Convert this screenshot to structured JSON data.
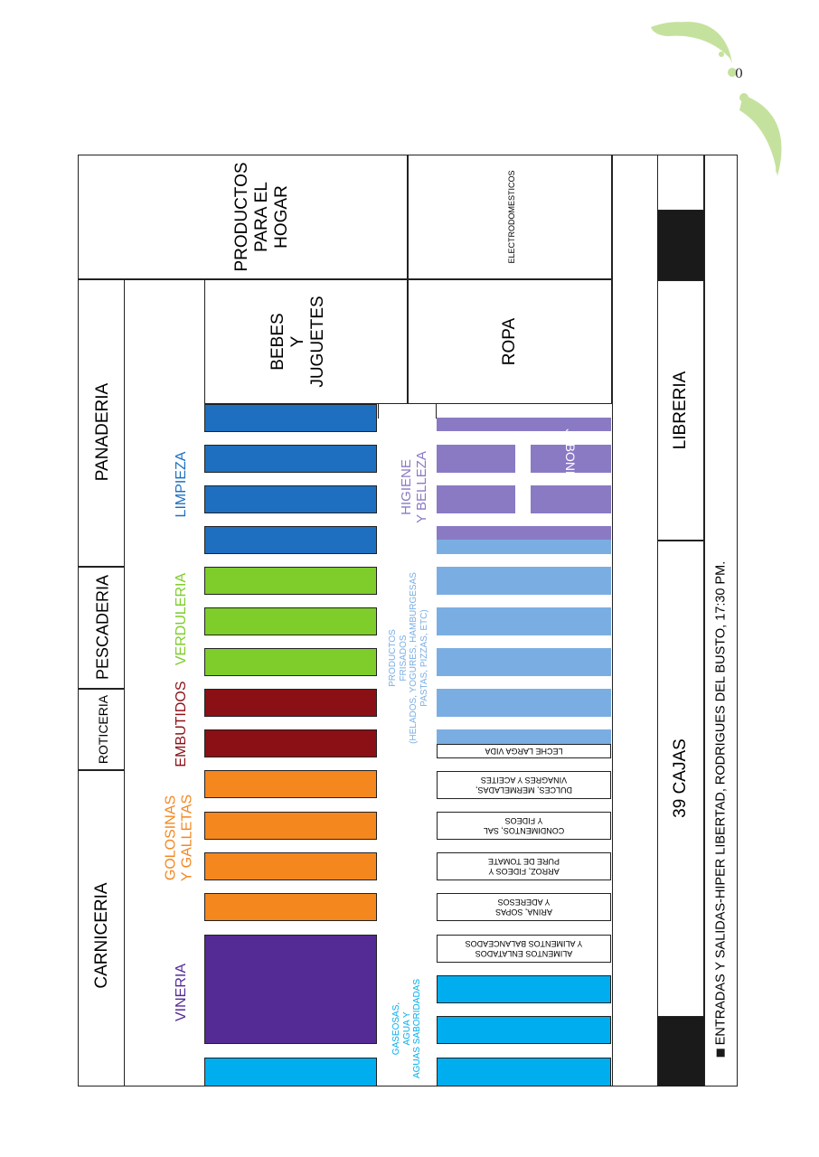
{
  "page_number": "0",
  "sections": {
    "carniceria": "CARNICERIA",
    "roticeria": "ROTICERIA",
    "pescaderia": "PESCADERIA",
    "panaderia": "PANADERIA",
    "productos_hogar": "PRODUCTOS\nPARA EL\nHOGAR",
    "electrodomesticos": "ELECTRODOMESTICOS",
    "bebes_juguetes": "BEBES\nY\nJUGUETES",
    "ropa": "ROPA",
    "libreria": "LIBRERIA",
    "cajas": "39 CAJAS"
  },
  "categories": {
    "vineria": "VINERIA",
    "golosinas": "GOLOSINAS\nY GALLETAS",
    "embutidos": "EMBUTIDOS",
    "verduleria": "VERDULERIA",
    "limpieza": "LIMPIEZA",
    "higiene": "HIGIENE\nY BELLEZA",
    "jabones": "JABONES",
    "gaseosas": "GASEOSAS,\nAGUA Y\nAGUAS SABORIDADAS",
    "congelados": "PRODUCTOS\nFRISADOS\n(HELADOS, YOGURES, HAMBURGESAS\nPASTAS, PIZZAS, ETC)"
  },
  "aisle_labels": {
    "alimentos_enlatados": "ALIMENTOS ENLATADOS\nY ALIMENTOS BALANCEADOS",
    "harina": "ARINA, SOPAS\nY ADERESOS",
    "arroz": "ARROZ, FIDEOS Y\nPURE DE TOMATE",
    "condimentos": "CONDIMENTOS, SAL\nY FIDEOS",
    "dulces": "DULCES, MERMELADAS,\nVINAGRES Y ACEITES",
    "leche": "LECHE LARGA VIDA"
  },
  "legend": "ENTRADAS Y SALIDAS-HIPER LIBERTAD, RODRIGUES DEL BUSTO, 17:30 PM.",
  "colors": {
    "vineria": "#542a94",
    "golosinas": "#f5871f",
    "embutidos": "#8b1015",
    "verduleria": "#7ecd2a",
    "limpieza": "#1e6fbf",
    "higiene": "#8a7ac4",
    "gaseosas": "#00adee",
    "congelados": "#7aaee3",
    "entrada": "#1a1a1a",
    "ornament": "#c5e19e"
  }
}
